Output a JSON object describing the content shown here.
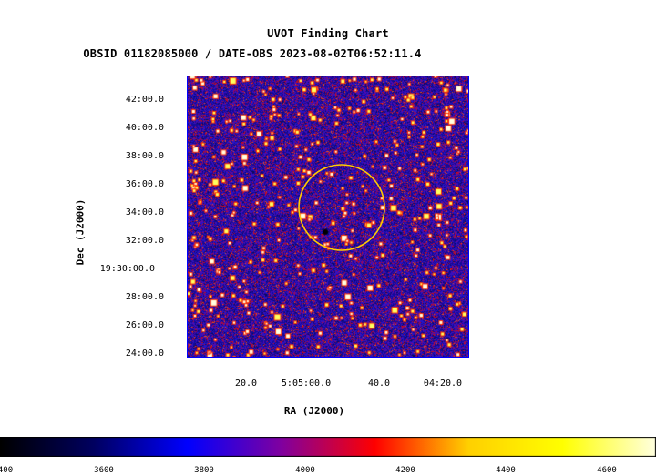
{
  "title": "UVOT Finding Chart",
  "subtitle": "OBSID 01182085000 / DATE-OBS 2023-08-02T06:52:11.4",
  "axes": {
    "xlabel": "RA (J2000)",
    "ylabel": "Dec (J2000)",
    "y_ticks": [
      "42:00.0",
      "40:00.0",
      "38:00.0",
      "36:00.0",
      "34:00.0",
      "32:00.0",
      "19:30:00.0",
      "28:00.0",
      "26:00.0",
      "24:00.0"
    ],
    "x_ticks": [
      "20.0",
      "5:05:00.0",
      "40.0",
      "04:20.0"
    ]
  },
  "colorbar": {
    "ticks": [
      "400",
      "3600",
      "3800",
      "4000",
      "4200",
      "4400",
      "4600"
    ],
    "colors": [
      "#000000",
      "#000060",
      "#0000ff",
      "#8000a0",
      "#ff0000",
      "#ffd000",
      "#ffff00",
      "#ffffe0"
    ]
  },
  "overlay": {
    "circle_color": "#ffcc00",
    "field_border_color": "#0000ff"
  }
}
